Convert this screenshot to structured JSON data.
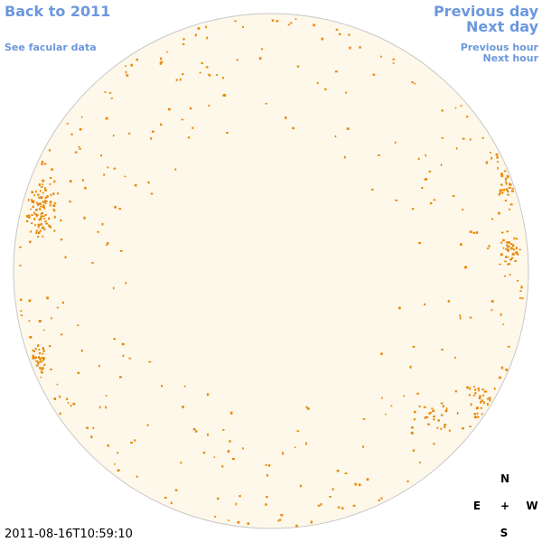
{
  "links": {
    "back": "Back to 2011",
    "facular": "See facular data",
    "previous_day": "Previous day",
    "next_day": "Next day",
    "previous_hour": "Previous hour",
    "next_hour": "Next hour"
  },
  "compass": {
    "north": "N",
    "east": "E",
    "center": "+",
    "west": "W",
    "south": "S"
  },
  "timestamp": "2011-08-16T10:59:10"
}
